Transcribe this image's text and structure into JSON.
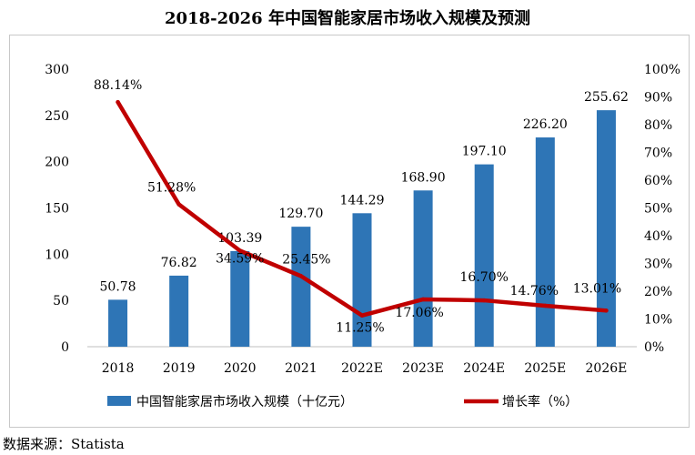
{
  "title": "2018-2026 年中国智能家居市场收入规模及预测",
  "source": "数据来源：Statista",
  "chart_data": {
    "type": "bar",
    "categories": [
      "2018",
      "2019",
      "2020",
      "2021",
      "2022E",
      "2023E",
      "2024E",
      "2025E",
      "2026E"
    ],
    "series": [
      {
        "name": "中国智能家居市场收入规模（十亿元）",
        "type": "bar",
        "axis": "left",
        "color": "#2e75b6",
        "values": [
          50.78,
          76.82,
          103.39,
          129.7,
          144.29,
          168.9,
          197.1,
          226.2,
          255.62
        ],
        "labels": [
          "50.78",
          "76.82",
          "103.39",
          "129.70",
          "144.29",
          "168.90",
          "197.10",
          "226.20",
          "255.62"
        ]
      },
      {
        "name": "增长率（%）",
        "type": "line",
        "axis": "right",
        "color": "#c00000",
        "values": [
          88.14,
          51.28,
          34.59,
          25.45,
          11.25,
          17.06,
          16.7,
          14.76,
          13.01
        ],
        "labels": [
          "88.14%",
          "51.28%",
          "34.59%",
          "25.45%",
          "11.25%",
          "17.06%",
          "16.70%",
          "14.76%",
          "13.01%"
        ]
      }
    ],
    "y_left": {
      "range": [
        0,
        300
      ],
      "ticks": [
        "0",
        "50",
        "100",
        "150",
        "200",
        "250",
        "300"
      ]
    },
    "y_right": {
      "range": [
        0,
        100
      ],
      "ticks": [
        "0%",
        "10%",
        "20%",
        "30%",
        "40%",
        "50%",
        "60%",
        "70%",
        "80%",
        "90%",
        "100%"
      ]
    },
    "grid": false,
    "legend": "bottom"
  }
}
